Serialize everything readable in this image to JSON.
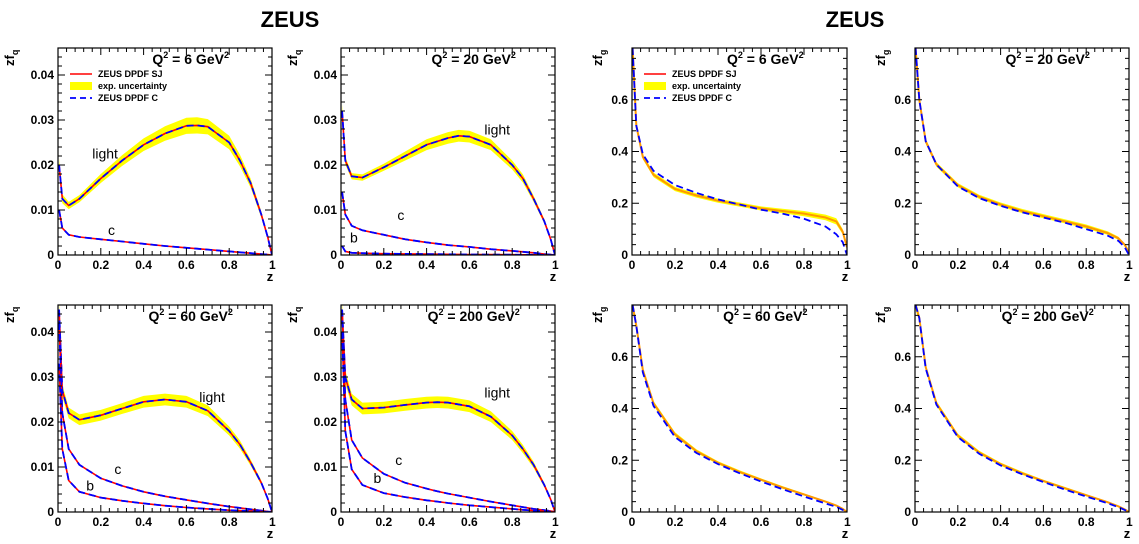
{
  "headers": {
    "left": "ZEUS",
    "right": "ZEUS"
  },
  "legend": {
    "sj": "ZEUS DPDF SJ",
    "unc": "exp. uncertainty",
    "c": "ZEUS DPDF C"
  },
  "colors": {
    "sj": "#ff0000",
    "band": "#ffff00",
    "c": "#0000ff",
    "gluon_sj": "#ff9900"
  },
  "chart_data": [
    {
      "type": "line",
      "quark": true,
      "title_q2": "6",
      "xlabel": "z",
      "ylabel_main": "zf",
      "ylabel_sub": "q",
      "xlim": [
        0,
        1
      ],
      "ylim": [
        0,
        0.046
      ],
      "xticks": [
        "0",
        "0.2",
        "0.4",
        "0.6",
        "0.8",
        "1"
      ],
      "yticks": [
        {
          "v": 0,
          "t": "0"
        },
        {
          "v": 0.01,
          "t": "0.01"
        },
        {
          "v": 0.02,
          "t": "0.02"
        },
        {
          "v": 0.03,
          "t": "0.03"
        },
        {
          "v": 0.04,
          "t": "0.04"
        }
      ],
      "legend": true,
      "x": [
        0.005,
        0.02,
        0.05,
        0.1,
        0.2,
        0.3,
        0.4,
        0.5,
        0.6,
        0.65,
        0.7,
        0.8,
        0.85,
        0.9,
        0.95,
        0.98,
        1.0
      ],
      "series": [
        {
          "name": "light",
          "sj": [
            0.02,
            0.0125,
            0.011,
            0.0125,
            0.017,
            0.021,
            0.0245,
            0.027,
            0.0287,
            0.0288,
            0.0285,
            0.025,
            0.021,
            0.016,
            0.009,
            0.004,
            0.0
          ],
          "unc": [
            0.0015,
            0.001,
            0.0008,
            0.0008,
            0.001,
            0.0012,
            0.0014,
            0.0016,
            0.0018,
            0.0018,
            0.0017,
            0.0015,
            0.0013,
            0.001,
            0.0007,
            0.0004,
            0.0
          ]
        },
        {
          "name": "c",
          "sj": [
            0.01,
            0.006,
            0.0045,
            0.004,
            0.0035,
            0.003,
            0.0025,
            0.002,
            0.0016,
            0.0014,
            0.0012,
            0.0008,
            0.0006,
            0.0004,
            0.0002,
            0.0001,
            0.0
          ]
        }
      ],
      "annotations": [
        {
          "text": "light",
          "x": 0.22,
          "y": 0.0215
        },
        {
          "text": "c",
          "x": 0.25,
          "y": 0.0045
        }
      ]
    },
    {
      "type": "line",
      "quark": true,
      "title_q2": "20",
      "xlabel": "z",
      "ylabel_main": "zf",
      "ylabel_sub": "q",
      "xlim": [
        0,
        1
      ],
      "ylim": [
        0,
        0.046
      ],
      "xticks": [
        "0",
        "0.2",
        "0.4",
        "0.6",
        "0.8",
        "1"
      ],
      "yticks": [
        {
          "v": 0,
          "t": "0"
        },
        {
          "v": 0.01,
          "t": "0.01"
        },
        {
          "v": 0.02,
          "t": "0.02"
        },
        {
          "v": 0.03,
          "t": "0.03"
        },
        {
          "v": 0.04,
          "t": "0.04"
        }
      ],
      "legend": false,
      "x": [
        0.005,
        0.02,
        0.05,
        0.1,
        0.2,
        0.3,
        0.4,
        0.5,
        0.55,
        0.6,
        0.7,
        0.8,
        0.85,
        0.9,
        0.95,
        0.98,
        1.0
      ],
      "series": [
        {
          "name": "light",
          "sj": [
            0.032,
            0.021,
            0.0175,
            0.0172,
            0.0195,
            0.022,
            0.0245,
            0.026,
            0.0265,
            0.0263,
            0.0245,
            0.02,
            0.017,
            0.0125,
            0.0075,
            0.0035,
            0.0
          ],
          "unc": [
            0.0015,
            0.0009,
            0.0007,
            0.0007,
            0.0008,
            0.001,
            0.0012,
            0.0013,
            0.0013,
            0.0013,
            0.0012,
            0.001,
            0.0009,
            0.0007,
            0.0005,
            0.0003,
            0.0
          ]
        },
        {
          "name": "c",
          "sj": [
            0.014,
            0.009,
            0.0065,
            0.0055,
            0.0045,
            0.0035,
            0.0028,
            0.0022,
            0.002,
            0.0018,
            0.0013,
            0.0009,
            0.0007,
            0.0005,
            0.0002,
            0.0001,
            0.0
          ]
        },
        {
          "name": "b",
          "sj": [
            0.002,
            0.0008,
            0.0005,
            0.0004,
            0.0003,
            0.00025,
            0.0002,
            0.00015,
            0.00013,
            0.00012,
            0.0001,
            7e-05,
            5e-05,
            4e-05,
            2e-05,
            1e-05,
            0.0
          ]
        }
      ],
      "annotations": [
        {
          "text": "light",
          "x": 0.73,
          "y": 0.0268
        },
        {
          "text": "c",
          "x": 0.28,
          "y": 0.0078
        },
        {
          "text": "b",
          "x": 0.06,
          "y": 0.0028
        }
      ]
    },
    {
      "type": "line",
      "quark": true,
      "title_q2": "60",
      "xlabel": "z",
      "ylabel_main": "zf",
      "ylabel_sub": "q",
      "xlim": [
        0,
        1
      ],
      "ylim": [
        0,
        0.046
      ],
      "xticks": [
        "0",
        "0.2",
        "0.4",
        "0.6",
        "0.8",
        "1"
      ],
      "yticks": [
        {
          "v": 0,
          "t": "0"
        },
        {
          "v": 0.01,
          "t": "0.01"
        },
        {
          "v": 0.02,
          "t": "0.02"
        },
        {
          "v": 0.03,
          "t": "0.03"
        },
        {
          "v": 0.04,
          "t": "0.04"
        }
      ],
      "legend": false,
      "x": [
        0.005,
        0.02,
        0.05,
        0.1,
        0.2,
        0.3,
        0.4,
        0.5,
        0.6,
        0.7,
        0.8,
        0.85,
        0.9,
        0.95,
        0.98,
        1.0
      ],
      "series": [
        {
          "name": "light",
          "sj": [
            0.045,
            0.027,
            0.022,
            0.0205,
            0.0215,
            0.023,
            0.0245,
            0.025,
            0.0245,
            0.0225,
            0.018,
            0.015,
            0.011,
            0.0065,
            0.003,
            0.0
          ],
          "unc": [
            0.002,
            0.0014,
            0.0012,
            0.0012,
            0.0012,
            0.0012,
            0.0013,
            0.0013,
            0.0013,
            0.0012,
            0.001,
            0.0009,
            0.0007,
            0.0005,
            0.0003,
            0.0
          ]
        },
        {
          "name": "c",
          "sj": [
            0.042,
            0.022,
            0.014,
            0.0105,
            0.0075,
            0.0058,
            0.0045,
            0.0035,
            0.0027,
            0.0019,
            0.0012,
            0.0009,
            0.0006,
            0.0003,
            0.0001,
            0.0
          ]
        },
        {
          "name": "b",
          "sj": [
            0.033,
            0.014,
            0.007,
            0.0045,
            0.0032,
            0.0025,
            0.0019,
            0.0014,
            0.001,
            0.0007,
            0.0004,
            0.0003,
            0.0002,
            0.0001,
            5e-05,
            0.0
          ]
        }
      ],
      "annotations": [
        {
          "text": "light",
          "x": 0.72,
          "y": 0.0245
        },
        {
          "text": "c",
          "x": 0.28,
          "y": 0.0085
        },
        {
          "text": "b",
          "x": 0.15,
          "y": 0.0048
        }
      ]
    },
    {
      "type": "line",
      "quark": true,
      "title_q2": "200",
      "xlabel": "z",
      "ylabel_main": "zf",
      "ylabel_sub": "q",
      "xlim": [
        0,
        1
      ],
      "ylim": [
        0,
        0.046
      ],
      "xticks": [
        "0",
        "0.2",
        "0.4",
        "0.6",
        "0.8",
        "1"
      ],
      "yticks": [
        {
          "v": 0,
          "t": "0"
        },
        {
          "v": 0.01,
          "t": "0.01"
        },
        {
          "v": 0.02,
          "t": "0.02"
        },
        {
          "v": 0.03,
          "t": "0.03"
        },
        {
          "v": 0.04,
          "t": "0.04"
        }
      ],
      "legend": false,
      "x": [
        0.005,
        0.02,
        0.05,
        0.1,
        0.2,
        0.3,
        0.4,
        0.45,
        0.5,
        0.6,
        0.7,
        0.8,
        0.85,
        0.9,
        0.95,
        0.98,
        1.0
      ],
      "series": [
        {
          "name": "light",
          "sj": [
            0.045,
            0.03,
            0.025,
            0.023,
            0.0232,
            0.0238,
            0.0243,
            0.0244,
            0.0243,
            0.0235,
            0.0212,
            0.017,
            0.014,
            0.0105,
            0.006,
            0.0028,
            0.0
          ],
          "unc": [
            0.002,
            0.0015,
            0.0013,
            0.0013,
            0.0013,
            0.0013,
            0.0013,
            0.0013,
            0.0013,
            0.0013,
            0.0012,
            0.001,
            0.0009,
            0.0007,
            0.0005,
            0.0003,
            0.0
          ]
        },
        {
          "name": "c",
          "sj": [
            0.045,
            0.025,
            0.016,
            0.012,
            0.0085,
            0.0065,
            0.0052,
            0.0046,
            0.0041,
            0.0032,
            0.0023,
            0.0015,
            0.0011,
            0.0007,
            0.0004,
            0.0002,
            0.0
          ]
        },
        {
          "name": "b",
          "sj": [
            0.04,
            0.018,
            0.0095,
            0.006,
            0.0042,
            0.0033,
            0.0026,
            0.0023,
            0.002,
            0.0015,
            0.0011,
            0.0007,
            0.0005,
            0.0003,
            0.0002,
            0.0001,
            0.0
          ]
        }
      ],
      "annotations": [
        {
          "text": "light",
          "x": 0.73,
          "y": 0.0255
        },
        {
          "text": "c",
          "x": 0.27,
          "y": 0.0105
        },
        {
          "text": "b",
          "x": 0.17,
          "y": 0.0065
        }
      ]
    },
    {
      "type": "line",
      "quark": false,
      "title_q2": "6",
      "xlabel": "z",
      "ylabel_main": "zf",
      "ylabel_sub": "g",
      "xlim": [
        0,
        1
      ],
      "ylim": [
        0,
        0.8
      ],
      "xticks": [
        "0",
        "0.2",
        "0.4",
        "0.6",
        "0.8",
        "1"
      ],
      "yticks": [
        {
          "v": 0,
          "t": "0"
        },
        {
          "v": 0.2,
          "t": "0.2"
        },
        {
          "v": 0.4,
          "t": "0.4"
        },
        {
          "v": 0.6,
          "t": "0.6"
        }
      ],
      "legend": true,
      "x": [
        0.003,
        0.02,
        0.05,
        0.1,
        0.2,
        0.3,
        0.4,
        0.5,
        0.6,
        0.7,
        0.8,
        0.9,
        0.95,
        0.98,
        1.0
      ],
      "series": [
        {
          "name": "gluon",
          "sj": [
            0.8,
            0.5,
            0.38,
            0.31,
            0.255,
            0.23,
            0.21,
            0.195,
            0.18,
            0.17,
            0.16,
            0.145,
            0.13,
            0.09,
            0.03
          ],
          "unc": [
            0.02,
            0.012,
            0.01,
            0.009,
            0.008,
            0.008,
            0.008,
            0.008,
            0.008,
            0.009,
            0.01,
            0.011,
            0.012,
            0.01,
            0.005
          ],
          "c": [
            0.8,
            0.5,
            0.39,
            0.325,
            0.27,
            0.24,
            0.215,
            0.195,
            0.175,
            0.16,
            0.14,
            0.11,
            0.08,
            0.05,
            0.0
          ]
        }
      ],
      "annotations": []
    },
    {
      "type": "line",
      "quark": false,
      "title_q2": "20",
      "xlabel": "z",
      "ylabel_main": "zf",
      "ylabel_sub": "g",
      "xlim": [
        0,
        1
      ],
      "ylim": [
        0,
        0.8
      ],
      "xticks": [
        "0",
        "0.2",
        "0.4",
        "0.6",
        "0.8",
        "1"
      ],
      "yticks": [
        {
          "v": 0,
          "t": "0"
        },
        {
          "v": 0.2,
          "t": "0.2"
        },
        {
          "v": 0.4,
          "t": "0.4"
        },
        {
          "v": 0.6,
          "t": "0.6"
        }
      ],
      "legend": false,
      "x": [
        0.003,
        0.02,
        0.05,
        0.1,
        0.2,
        0.3,
        0.4,
        0.5,
        0.6,
        0.7,
        0.8,
        0.9,
        0.95,
        0.98,
        1.0
      ],
      "series": [
        {
          "name": "gluon",
          "sj": [
            0.8,
            0.6,
            0.44,
            0.35,
            0.27,
            0.225,
            0.195,
            0.17,
            0.15,
            0.13,
            0.11,
            0.085,
            0.065,
            0.04,
            0.01
          ],
          "unc": [
            0.02,
            0.012,
            0.01,
            0.009,
            0.008,
            0.008,
            0.008,
            0.008,
            0.008,
            0.008,
            0.008,
            0.007,
            0.006,
            0.004,
            0.002
          ],
          "c": [
            0.8,
            0.6,
            0.44,
            0.35,
            0.265,
            0.22,
            0.19,
            0.165,
            0.145,
            0.125,
            0.1,
            0.075,
            0.055,
            0.03,
            0.0
          ]
        }
      ],
      "annotations": []
    },
    {
      "type": "line",
      "quark": false,
      "title_q2": "60",
      "xlabel": "z",
      "ylabel_main": "zf",
      "ylabel_sub": "g",
      "xlim": [
        0,
        1
      ],
      "ylim": [
        0,
        0.8
      ],
      "xticks": [
        "0",
        "0.2",
        "0.4",
        "0.6",
        "0.8",
        "1"
      ],
      "yticks": [
        {
          "v": 0,
          "t": "0"
        },
        {
          "v": 0.2,
          "t": "0.2"
        },
        {
          "v": 0.4,
          "t": "0.4"
        },
        {
          "v": 0.6,
          "t": "0.6"
        }
      ],
      "legend": false,
      "x": [
        0.003,
        0.02,
        0.05,
        0.1,
        0.2,
        0.3,
        0.4,
        0.5,
        0.6,
        0.7,
        0.8,
        0.9,
        0.95,
        0.98,
        1.0
      ],
      "series": [
        {
          "name": "gluon",
          "sj": [
            0.8,
            0.72,
            0.55,
            0.42,
            0.3,
            0.235,
            0.19,
            0.155,
            0.125,
            0.095,
            0.068,
            0.04,
            0.025,
            0.012,
            0.0
          ],
          "unc": [
            0.02,
            0.012,
            0.01,
            0.009,
            0.008,
            0.007,
            0.006,
            0.006,
            0.005,
            0.005,
            0.004,
            0.003,
            0.002,
            0.001,
            0.0
          ],
          "c": [
            0.8,
            0.72,
            0.54,
            0.41,
            0.29,
            0.228,
            0.185,
            0.15,
            0.118,
            0.088,
            0.06,
            0.033,
            0.02,
            0.008,
            0.0
          ]
        }
      ],
      "annotations": []
    },
    {
      "type": "line",
      "quark": false,
      "title_q2": "200",
      "xlabel": "z",
      "ylabel_main": "zf",
      "ylabel_sub": "g",
      "xlim": [
        0,
        1
      ],
      "ylim": [
        0,
        0.8
      ],
      "xticks": [
        "0",
        "0.2",
        "0.4",
        "0.6",
        "0.8",
        "1"
      ],
      "yticks": [
        {
          "v": 0,
          "t": "0"
        },
        {
          "v": 0.2,
          "t": "0.2"
        },
        {
          "v": 0.4,
          "t": "0.4"
        },
        {
          "v": 0.6,
          "t": "0.6"
        }
      ],
      "legend": false,
      "x": [
        0.003,
        0.02,
        0.05,
        0.1,
        0.2,
        0.3,
        0.4,
        0.5,
        0.6,
        0.7,
        0.8,
        0.9,
        0.95,
        0.98,
        1.0
      ],
      "series": [
        {
          "name": "gluon",
          "sj": [
            0.8,
            0.75,
            0.56,
            0.42,
            0.295,
            0.23,
            0.185,
            0.15,
            0.12,
            0.092,
            0.065,
            0.038,
            0.022,
            0.01,
            0.0
          ],
          "unc": [
            0.02,
            0.012,
            0.01,
            0.009,
            0.008,
            0.007,
            0.006,
            0.006,
            0.005,
            0.005,
            0.004,
            0.003,
            0.002,
            0.001,
            0.0
          ],
          "c": [
            0.8,
            0.75,
            0.555,
            0.415,
            0.29,
            0.225,
            0.18,
            0.146,
            0.116,
            0.087,
            0.06,
            0.034,
            0.019,
            0.008,
            0.0
          ]
        }
      ],
      "annotations": []
    }
  ]
}
